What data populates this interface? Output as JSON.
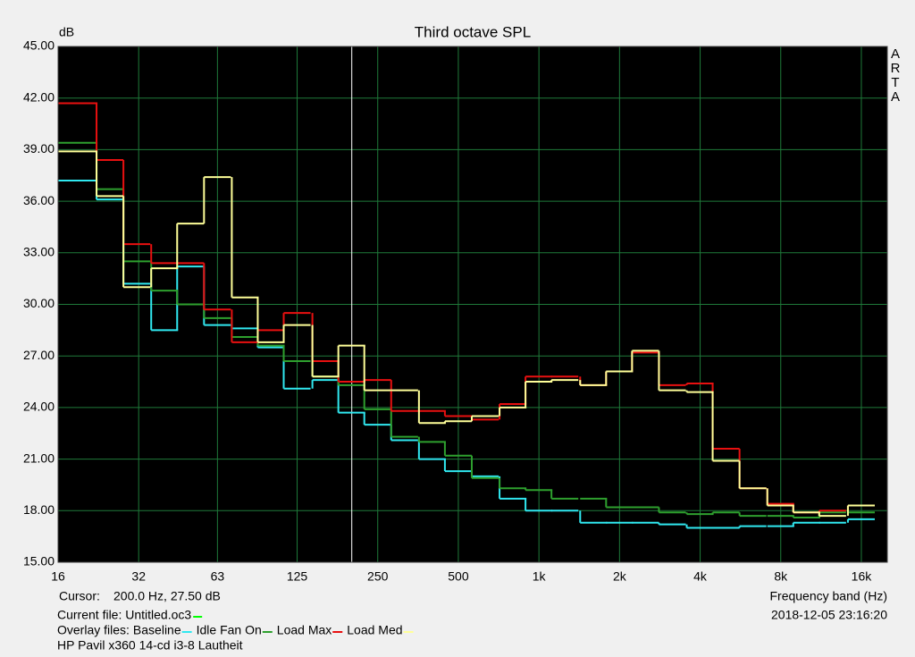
{
  "chart_data": {
    "type": "step",
    "title": "Third octave SPL",
    "y_unit": "dB",
    "xlabel": "Frequency band (Hz)",
    "brand": [
      "A",
      "R",
      "T",
      "A"
    ],
    "log_x": true,
    "grid": true,
    "background": "#000000",
    "grid_color": "#1f7a3a",
    "xlim": [
      16,
      20000
    ],
    "ylim": [
      15,
      45
    ],
    "xticks": [
      16,
      32,
      63,
      125,
      250,
      500,
      {
        "value": 1000,
        "label": "1k"
      },
      {
        "value": 2000,
        "label": "2k"
      },
      {
        "value": 4000,
        "label": "4k"
      },
      {
        "value": 8000,
        "label": "8k"
      },
      {
        "value": 16000,
        "label": "16k"
      }
    ],
    "yticks": [
      {
        "value": 15,
        "label": "15.00"
      },
      {
        "value": 18,
        "label": "18.00"
      },
      {
        "value": 21,
        "label": "21.00"
      },
      {
        "value": 24,
        "label": "24.00"
      },
      {
        "value": 27,
        "label": "27.00"
      },
      {
        "value": 30,
        "label": "30.00"
      },
      {
        "value": 33,
        "label": "33.00"
      },
      {
        "value": 36,
        "label": "36.00"
      },
      {
        "value": 39,
        "label": "39.00"
      },
      {
        "value": 42,
        "label": "42.00"
      },
      {
        "value": 45,
        "label": "45.00"
      }
    ],
    "x": [
      20,
      25,
      31.5,
      40,
      50,
      63,
      80,
      100,
      125,
      160,
      200,
      250,
      315,
      400,
      500,
      630,
      800,
      1000,
      1250,
      1600,
      2000,
      2500,
      3150,
      4000,
      5000,
      6300,
      8000,
      10000,
      12500,
      16000
    ],
    "cursor": {
      "label": "Cursor:",
      "readout": "200.0 Hz, 27.50 dB",
      "x": 200,
      "color": "#ffffff"
    },
    "current_file": {
      "text": "Current file: Untitled.oc3",
      "color": "#00ff00"
    },
    "overlay_label": "Overlay files:",
    "timestamp": "2018-12-05  23:16:20",
    "note": "HP Pavil x360 14-cd i3-8 Lautheit",
    "series": [
      {
        "name": "Baseline",
        "color": "#30e8f0",
        "values": [
          37.2,
          36.1,
          31.2,
          28.5,
          32.2,
          28.8,
          28.6,
          27.5,
          25.1,
          25.6,
          23.7,
          23.0,
          22.1,
          21.0,
          20.3,
          20.0,
          18.7,
          18.0,
          18.0,
          17.3,
          17.3,
          17.3,
          17.2,
          17.0,
          17.0,
          17.1,
          17.1,
          17.3,
          17.3,
          17.5
        ]
      },
      {
        "name": "Idle Fan On",
        "color": "#2ea02e",
        "values": [
          39.4,
          36.7,
          32.5,
          30.8,
          30.0,
          29.2,
          28.1,
          27.6,
          26.7,
          25.8,
          25.3,
          23.9,
          22.3,
          22.0,
          21.2,
          19.9,
          19.3,
          19.2,
          18.7,
          18.7,
          18.2,
          18.2,
          17.9,
          17.8,
          17.9,
          17.7,
          17.7,
          17.6,
          17.9,
          17.9
        ]
      },
      {
        "name": "Load Max",
        "color": "#e81010",
        "values": [
          41.7,
          38.4,
          33.5,
          32.4,
          32.4,
          29.7,
          27.8,
          28.5,
          29.5,
          26.7,
          25.5,
          25.6,
          23.8,
          23.8,
          23.5,
          23.3,
          24.2,
          25.8,
          25.8,
          25.3,
          26.1,
          27.2,
          25.3,
          25.4,
          21.6,
          19.3,
          18.4,
          17.9,
          18.0,
          18.3
        ]
      },
      {
        "name": "Load Med",
        "color": "#ffff99",
        "values": [
          38.9,
          36.3,
          31.0,
          32.1,
          34.7,
          37.4,
          30.4,
          27.8,
          28.8,
          25.8,
          27.6,
          25.0,
          25.0,
          23.1,
          23.2,
          23.5,
          24.0,
          25.5,
          25.6,
          25.3,
          26.1,
          27.3,
          25.0,
          24.9,
          20.9,
          19.3,
          18.3,
          17.9,
          17.7,
          18.3
        ]
      }
    ]
  }
}
